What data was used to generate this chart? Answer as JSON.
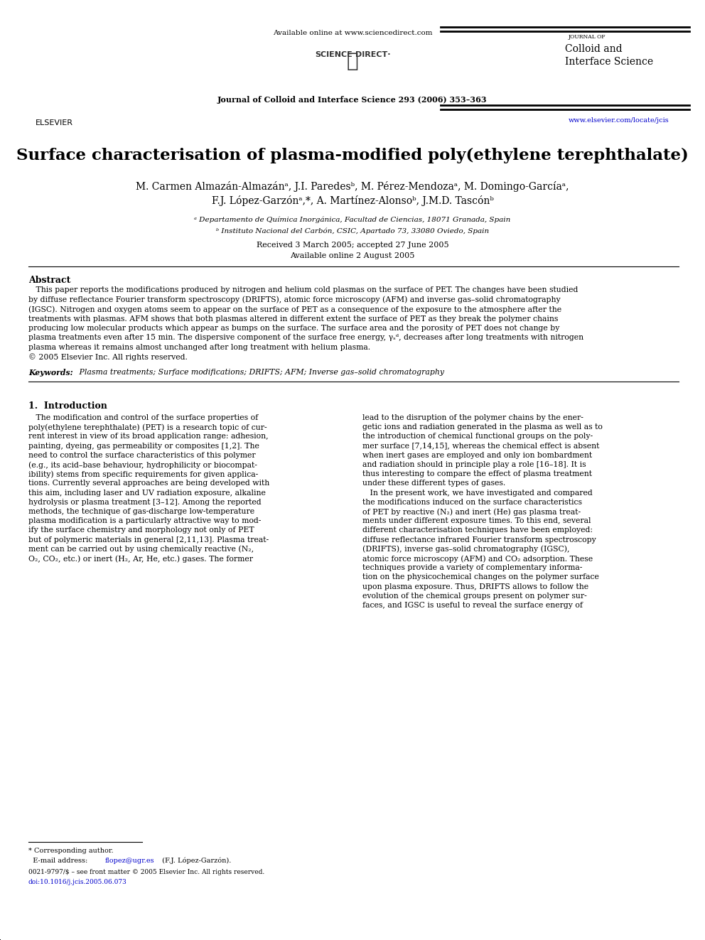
{
  "bg_color": "#ffffff",
  "page_width": 9.92,
  "page_height": 13.23,
  "header": {
    "available_online": "Available online at www.sciencedirect.com",
    "journal_name_small": "JOURNAL OF",
    "journal_name_large1": "Colloid and",
    "journal_name_large2": "Interface Science",
    "journal_info": "Journal of Colloid and Interface Science 293 (2006) 353–363",
    "url": "www.elsevier.com/locate/jcis",
    "url_color": "#0000cc"
  },
  "title": "Surface characterisation of plasma-modified poly(ethylene terephthalate)",
  "authors_line1": "M. Carmen Almazán-Almazánᵃ, J.I. Paredesᵇ, M. Pérez-Mendozaᵃ, M. Domingo-Garcíaᵃ,",
  "authors_line2": "F.J. López-Garzónᵃ,*, A. Martínez-Alonsoᵇ, J.M.D. Tascónᵇ",
  "affiliation_a": "ᵃ Departamento de Química Inorgánica, Facultad de Ciencias, 18071 Granada, Spain",
  "affiliation_b": "ᵇ Instituto Nacional del Carbón, CSIC, Apartado 73, 33080 Oviedo, Spain",
  "received": "Received 3 March 2005; accepted 27 June 2005",
  "available_online2": "Available online 2 August 2005",
  "abstract_title": "Abstract",
  "keywords_label": "Keywords:",
  "keywords_text": " Plasma treatments; Surface modifications; DRIFTS; AFM; Inverse gas–solid chromatography",
  "section1_title": "1.  Introduction",
  "footnote_star": "* Corresponding author.",
  "footnote_email_pre": "  E-mail address: ",
  "footnote_email_link": "flopez@ugr.es",
  "footnote_email_post": " (F.J. López-Garzón).",
  "footnote_issn": "0021-9797/$ – see front matter © 2005 Elsevier Inc. All rights reserved.",
  "footnote_doi": "doi:10.1016/j.jcis.2005.06.073",
  "link_color": "#0000cc"
}
